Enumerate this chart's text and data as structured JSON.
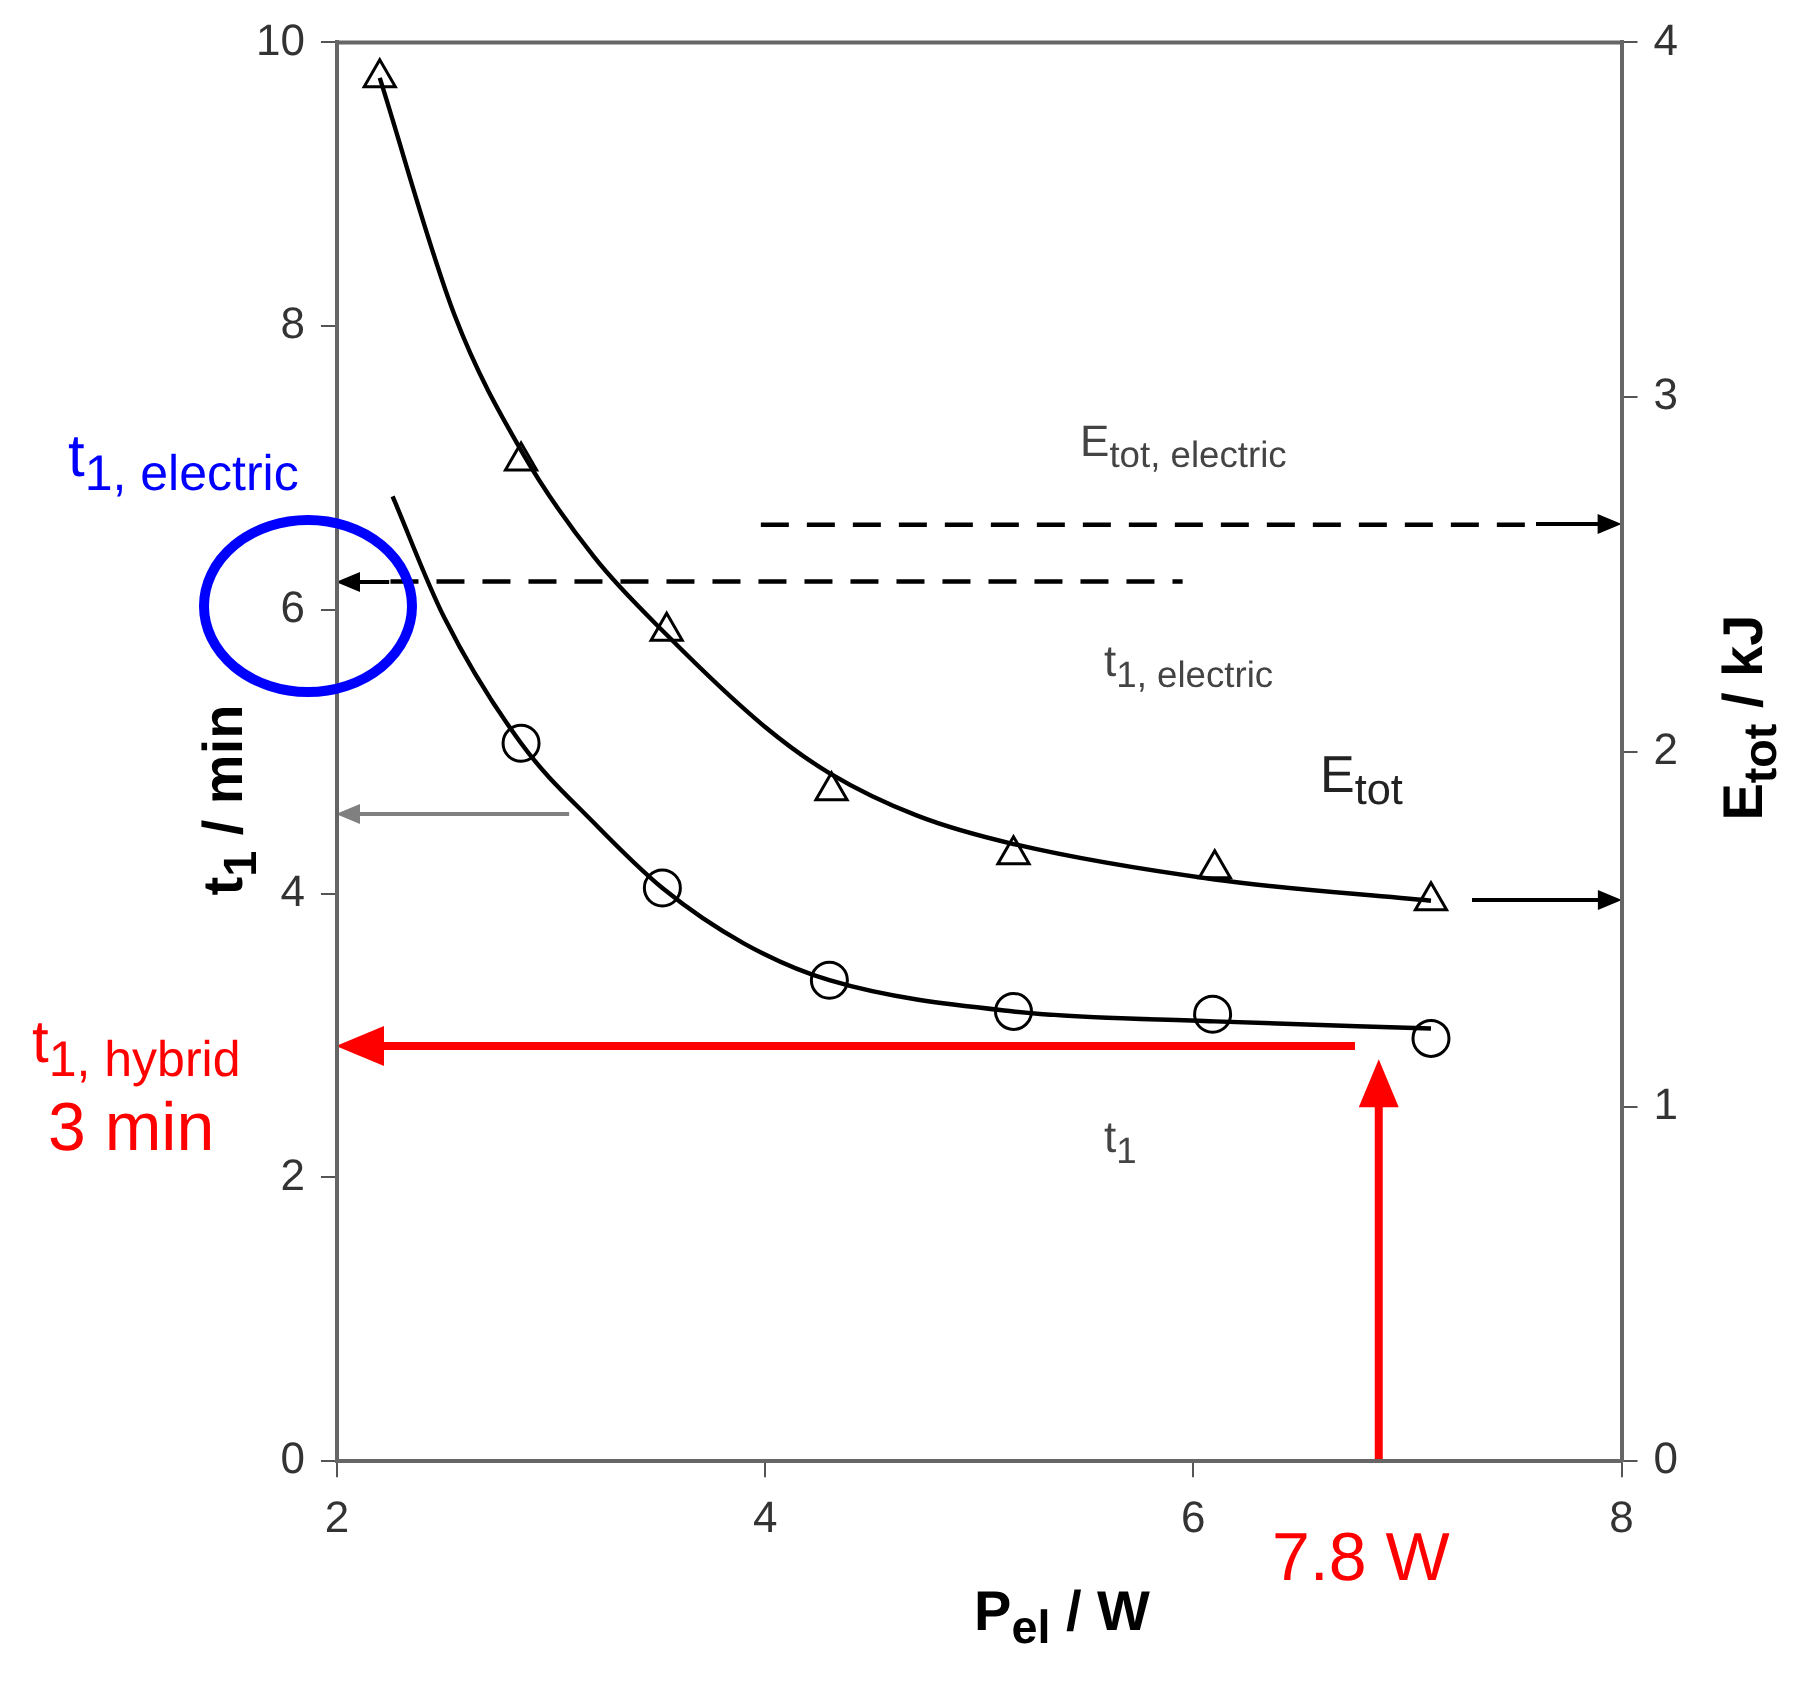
{
  "chart_data": {
    "type": "line",
    "xlabel": "P$_{el}$ / W",
    "ylabel": "t$_{1}$ / min",
    "y2label": "E$_{tot}$ / kJ",
    "xlim": [
      2,
      8
    ],
    "xticks": [
      2,
      4,
      6,
      8
    ],
    "ylim": [
      0,
      10
    ],
    "yticks": [
      0,
      2,
      4,
      6,
      8,
      10
    ],
    "y2lim": [
      0,
      4
    ],
    "y2ticks": [
      0,
      1,
      2,
      3,
      4
    ],
    "series": [
      {
        "type": "line",
        "axis": "y2",
        "color": "#000000",
        "marker": "none",
        "x": [
          2.2,
          2.55,
          2.86,
          3.2,
          3.54,
          4.0,
          4.3,
          4.71,
          5.16,
          6.1,
          7.11
        ],
        "values": [
          3.9,
          3.23,
          2.85,
          2.55,
          2.33,
          2.07,
          1.94,
          1.82,
          1.74,
          1.64,
          1.58
        ]
      },
      {
        "type": "scatter",
        "axis": "y2",
        "color": "#000000",
        "marker": "triangle",
        "x": [
          2.2,
          2.86,
          3.54,
          4.31,
          5.16,
          6.1,
          7.11
        ],
        "values": [
          3.9,
          2.82,
          2.34,
          1.89,
          1.71,
          1.67,
          1.58
        ]
      },
      {
        "type": "line",
        "color": "#000000",
        "marker": "none",
        "x": [
          2.26,
          2.5,
          2.86,
          3.2,
          3.52,
          3.9,
          4.3,
          5.16,
          6.1,
          7.11
        ],
        "values": [
          6.8,
          5.95,
          5.06,
          4.5,
          4.04,
          3.65,
          3.39,
          3.17,
          3.1,
          3.05
        ]
      },
      {
        "type": "scatter",
        "color": "#000000",
        "marker": "circle",
        "x": [
          2.86,
          3.52,
          4.3,
          5.16,
          6.09,
          7.11
        ],
        "values": [
          5.06,
          4.04,
          3.39,
          3.17,
          3.15,
          2.98
        ]
      },
      {
        "type": "line",
        "color": "#000000",
        "marker": "none",
        "line_style": "dashed",
        "x": [
          2.25,
          5.95
        ],
        "values": [
          6.2,
          6.2
        ]
      },
      {
        "type": "line",
        "axis": "y2",
        "color": "#000000",
        "marker": "none",
        "line_style": "dashed",
        "x": [
          3.98,
          7.6
        ],
        "values": [
          2.64,
          2.64
        ]
      }
    ],
    "annotations": [
      "E$_{tot, electric}$",
      "t$_{1, electric}$",
      "E$_{tot}$",
      "t$_{1}$",
      "t$_{1, electric}$",
      "t$_{1, hybrid}$",
      "3 min",
      "7.8 W"
    ]
  }
}
